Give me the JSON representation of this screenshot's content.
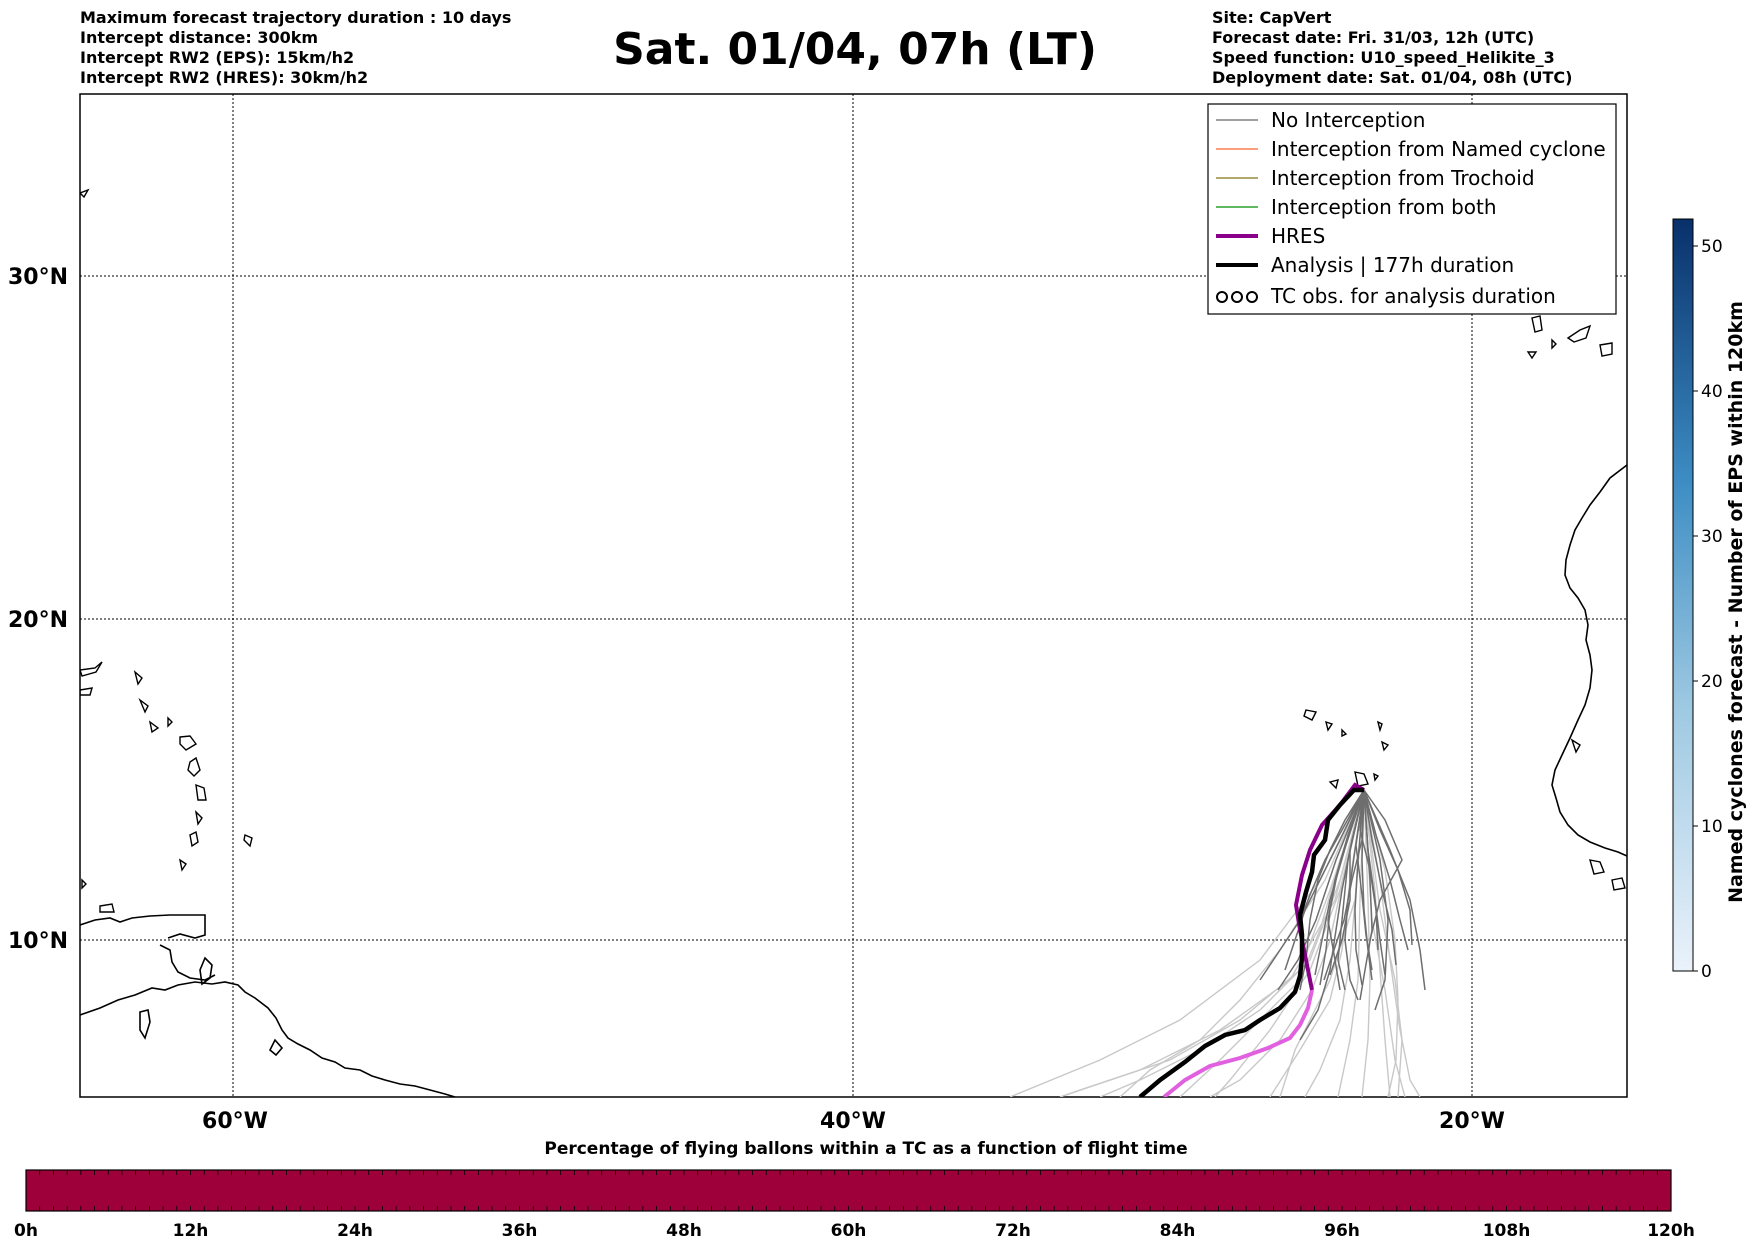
{
  "header": {
    "left": [
      "Maximum forecast trajectory duration : 10 days",
      "Intercept distance: 300km",
      "Intercept RW2 (EPS):  15km/h2",
      "Intercept RW2 (HRES): 30km/h2"
    ],
    "title": "Sat. 01/04, 07h (LT)",
    "right": [
      "Site: CapVert",
      "Forecast date: Fri. 31/03, 12h (UTC)",
      "Speed function: U10_speed_Helikite_3",
      "Deployment date: Sat. 01/04, 08h (UTC)"
    ]
  },
  "map": {
    "lat_labels": [
      "30°N",
      "20°N",
      "10°N"
    ],
    "lon_labels": [
      "60°W",
      "40°W",
      "20°W"
    ]
  },
  "legend": {
    "items": [
      {
        "label": "No Interception",
        "color": "#808080",
        "kind": "thin"
      },
      {
        "label": "Interception from Named cyclone",
        "color": "#ff7f50",
        "kind": "thin"
      },
      {
        "label": "Interception from Trochoid",
        "color": "#9a8c3a",
        "kind": "thin"
      },
      {
        "label": "Interception from both",
        "color": "#2ca02c",
        "kind": "thin"
      },
      {
        "label": "HRES",
        "color": "#8b008b",
        "kind": "thick"
      },
      {
        "label": "Analysis | 177h duration",
        "color": "#000000",
        "kind": "thick"
      },
      {
        "label": "TC obs. for analysis duration",
        "color": "#000000",
        "kind": "cyclone"
      }
    ]
  },
  "colorbar": {
    "label": "Named cyclones forecast - Number of EPS within 120km",
    "ticks": [
      "0",
      "10",
      "20",
      "30",
      "40",
      "50"
    ],
    "color_low": "#eaf2fb",
    "color_high": "#08306b"
  },
  "percent_bar": {
    "title": "Percentage of flying ballons within a TC as a function of flight time",
    "ticks": [
      "0h",
      "12h",
      "24h",
      "36h",
      "48h",
      "60h",
      "72h",
      "84h",
      "96h",
      "108h",
      "120h"
    ],
    "fill_color": "#9e003a",
    "fill_fraction": 1.0
  }
}
